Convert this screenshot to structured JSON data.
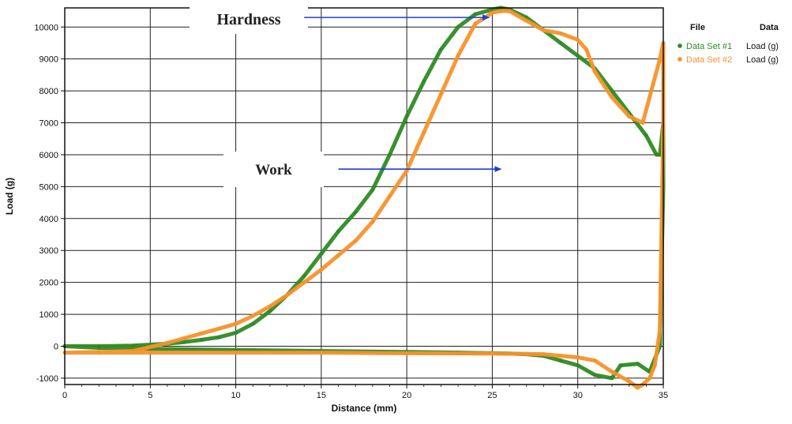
{
  "chart_data": {
    "type": "line",
    "xlabel": "Distance (mm)",
    "ylabel": "Load (g)",
    "xlim": [
      0,
      35
    ],
    "ylim": [
      -1200,
      10600
    ],
    "x_ticks": [
      0,
      5,
      10,
      15,
      20,
      25,
      30,
      35
    ],
    "y_ticks": [
      -1000,
      0,
      1000,
      2000,
      3000,
      4000,
      5000,
      6000,
      7000,
      8000,
      9000,
      10000
    ],
    "grid": true,
    "legend": {
      "position": "right",
      "header_file": "File",
      "header_data": "Data"
    },
    "series": [
      {
        "name": "Data Set #1",
        "data_label": "Load (g)",
        "color": "#2e8b24",
        "x": [
          0,
          2,
          4,
          6,
          7,
          8,
          9,
          10,
          11,
          12,
          13,
          14,
          15,
          16,
          17,
          18,
          19,
          20,
          21,
          22,
          23,
          24,
          25,
          25.5,
          26,
          27,
          28,
          29,
          30,
          31,
          32,
          33,
          34,
          34.6,
          34.8,
          35,
          35,
          34.8,
          34.5,
          34.2,
          33.5,
          32.5,
          32,
          31,
          30,
          29,
          28,
          27,
          26,
          25,
          23,
          20,
          15,
          10,
          5,
          2,
          0
        ],
        "y": [
          0,
          0,
          20,
          80,
          130,
          200,
          280,
          420,
          700,
          1100,
          1600,
          2200,
          2900,
          3600,
          4200,
          4900,
          6000,
          7200,
          8300,
          9300,
          10000,
          10400,
          10550,
          10600,
          10550,
          10300,
          9900,
          9500,
          9100,
          8700,
          8000,
          7300,
          6600,
          6000,
          6000,
          7000,
          5000,
          0,
          -400,
          -800,
          -550,
          -600,
          -1000,
          -900,
          -600,
          -450,
          -300,
          -250,
          -230,
          -220,
          -200,
          -180,
          -150,
          -120,
          -80,
          -50,
          0
        ]
      },
      {
        "name": "Data Set #2",
        "data_label": "Load (g)",
        "color": "#f7922c",
        "x": [
          0,
          2,
          4,
          6,
          7,
          8,
          9,
          10,
          11,
          12,
          13,
          14,
          15,
          16,
          17,
          18,
          19,
          20,
          21,
          22,
          23,
          24,
          25,
          25.5,
          26,
          27,
          28,
          29,
          30,
          30.5,
          31,
          32,
          33,
          33.8,
          34.3,
          34.8,
          35,
          35,
          34.8,
          34.5,
          34.2,
          33.8,
          33.5,
          33,
          32,
          31,
          30,
          29,
          28,
          27,
          25,
          20,
          15,
          10,
          5,
          2,
          0
        ],
        "y": [
          -200,
          -180,
          -150,
          100,
          250,
          400,
          550,
          700,
          950,
          1250,
          1600,
          2000,
          2400,
          2850,
          3300,
          3900,
          4700,
          5500,
          6700,
          7900,
          9100,
          10100,
          10450,
          10500,
          10500,
          10200,
          9900,
          9800,
          9600,
          9300,
          8600,
          7800,
          7200,
          7000,
          8000,
          9000,
          9500,
          7000,
          500,
          -600,
          -1000,
          -1200,
          -1300,
          -1100,
          -800,
          -450,
          -350,
          -300,
          -250,
          -240,
          -230,
          -220,
          -200,
          -200,
          -200,
          -200,
          -200
        ]
      }
    ],
    "annotations": [
      {
        "text": "Hardness",
        "arrow_from": [
          14,
          10300
        ],
        "arrow_to": [
          24.8,
          10300
        ]
      },
      {
        "text": "Work",
        "arrow_from": [
          16,
          5550
        ],
        "arrow_to": [
          25.5,
          5550
        ]
      }
    ]
  }
}
